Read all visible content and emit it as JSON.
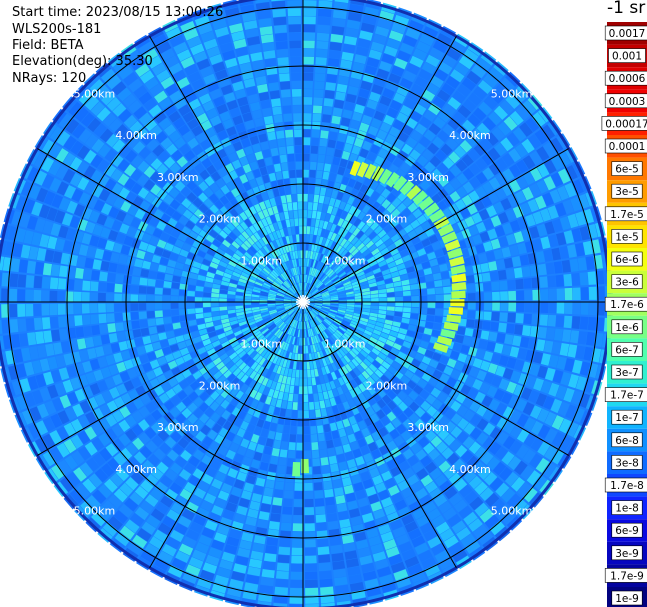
{
  "info": {
    "start_time": "Start time: 2023/08/15 13:00:26",
    "instrument": "WLS200s-181",
    "field": "Field: BETA",
    "elevation": "Elevation(deg): 35.30",
    "nrays": "NRays: 120"
  },
  "colorbar": {
    "unit": "-1 sr",
    "labels": [
      "0.0017",
      "0.001",
      "0.0006",
      "0.0003",
      "0.00017",
      "0.0001",
      "6e-5",
      "3e-5",
      "1.7e-5",
      "1e-5",
      "6e-6",
      "3e-6",
      "1.7e-6",
      "1e-6",
      "6e-7",
      "3e-7",
      "1.7e-7",
      "1e-7",
      "6e-8",
      "3e-8",
      "1.7e-8",
      "1e-8",
      "6e-9",
      "3e-9",
      "1.7e-9",
      "1e-9"
    ],
    "colors": [
      "#a00000",
      "#c40000",
      "#e00000",
      "#f00000",
      "#ff2000",
      "#ff5000",
      "#ff7800",
      "#ff9c00",
      "#ffc400",
      "#ffe400",
      "#f4ff10",
      "#caff3a",
      "#a0ff60",
      "#78ff86",
      "#50ffae",
      "#30f0d0",
      "#20d8f0",
      "#10b4ff",
      "#1090ff",
      "#106cff",
      "#1048ff",
      "#1024ff",
      "#0a0ae0",
      "#0606c0",
      "#0404a0",
      "#020280"
    ]
  },
  "chart_data": {
    "type": "heatmap",
    "projection": "polar (PPI)",
    "field": "BETA",
    "units": "sr^-1",
    "nrays": 120,
    "range_rings_km": [
      1,
      2,
      3,
      4,
      5
    ],
    "range_labels": [
      "1.00km",
      "2.00km",
      "3.00km",
      "4.00km",
      "5.00km"
    ],
    "max_range_km": 5.2,
    "features": [
      {
        "name": "arc-east",
        "azimuth_deg": [
          20,
          110
        ],
        "range_km": [
          2.1,
          2.8
        ],
        "beta": "1e-6 to 3e-5"
      },
      {
        "name": "spot-south",
        "azimuth_deg": [
          178,
          182
        ],
        "range_km": [
          2.7,
          2.9
        ],
        "beta": "1.7e-6"
      }
    ],
    "background_beta": "1e-8 to 3e-7"
  }
}
